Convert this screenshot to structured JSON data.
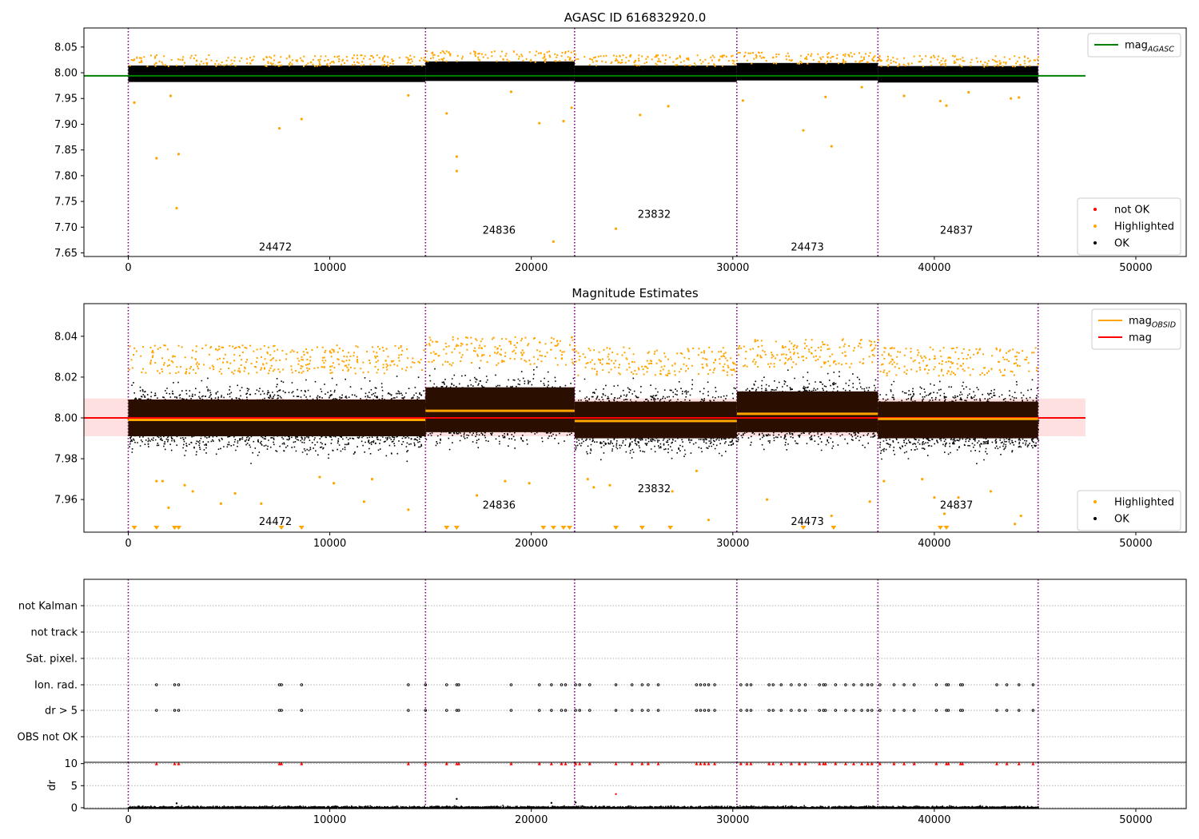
{
  "chart_data": [
    {
      "type": "scatter",
      "title": "AGASC ID 616832920.0",
      "xlim": [
        -2200,
        52500
      ],
      "ylim": [
        7.643,
        8.087
      ],
      "xticks": [
        0,
        10000,
        20000,
        30000,
        40000,
        50000
      ],
      "xtick_labels": [
        "0",
        "10000",
        "20000",
        "30000",
        "40000",
        "50000"
      ],
      "yticks": [
        7.65,
        7.7,
        7.75,
        7.8,
        7.85,
        7.9,
        7.95,
        8.0,
        8.05
      ],
      "ytick_labels": [
        "7.65",
        "7.70",
        "7.75",
        "7.80",
        "7.85",
        "7.90",
        "7.95",
        "8.00",
        "8.05"
      ],
      "obs_boundaries": [
        0,
        14750,
        22150,
        30200,
        37200,
        45150
      ],
      "obsids": [
        {
          "label": "24472",
          "x": 7300,
          "y": 7.655
        },
        {
          "label": "24836",
          "x": 18400,
          "y": 7.687
        },
        {
          "label": "23832",
          "x": 26100,
          "y": 7.718
        },
        {
          "label": "24473",
          "x": 33700,
          "y": 7.655
        },
        {
          "label": "24837",
          "x": 41100,
          "y": 7.687
        }
      ],
      "mag_agasc": {
        "value": 7.994,
        "x_range": [
          -2200,
          47500
        ],
        "color": "#008000"
      },
      "ok_band": [
        {
          "x0": 0,
          "x1": 14750,
          "center": 7.998,
          "half": 0.016
        },
        {
          "x0": 14750,
          "x1": 22150,
          "center": 8.003,
          "half": 0.019
        },
        {
          "x0": 22150,
          "x1": 30200,
          "center": 7.998,
          "half": 0.016
        },
        {
          "x0": 30200,
          "x1": 37200,
          "center": 8.002,
          "half": 0.017
        },
        {
          "x0": 37200,
          "x1": 45150,
          "center": 7.997,
          "half": 0.016
        }
      ],
      "highlighted_points": [
        [
          300,
          7.942
        ],
        [
          1400,
          7.834
        ],
        [
          2100,
          7.955
        ],
        [
          2500,
          7.842
        ],
        [
          2400,
          7.737
        ],
        [
          7500,
          7.892
        ],
        [
          8600,
          7.91
        ],
        [
          13900,
          7.956
        ],
        [
          15800,
          7.921
        ],
        [
          16300,
          7.837
        ],
        [
          16300,
          7.809
        ],
        [
          19000,
          7.963
        ],
        [
          20400,
          7.902
        ],
        [
          21100,
          7.672
        ],
        [
          21600,
          7.906
        ],
        [
          22000,
          7.932
        ],
        [
          24200,
          7.697
        ],
        [
          25400,
          7.918
        ],
        [
          26800,
          7.935
        ],
        [
          30500,
          7.946
        ],
        [
          33500,
          7.888
        ],
        [
          34900,
          7.857
        ],
        [
          34600,
          7.953
        ],
        [
          36400,
          7.972
        ],
        [
          38500,
          7.955
        ],
        [
          40300,
          7.945
        ],
        [
          40600,
          7.936
        ],
        [
          41700,
          7.962
        ],
        [
          43800,
          7.95
        ],
        [
          44200,
          7.952
        ]
      ],
      "legend": [
        {
          "label": "mag",
          "sub": "AGASC",
          "color": "#008000",
          "kind": "line",
          "placement": "top-right"
        },
        {
          "label": "not OK",
          "color": "#ff0000",
          "kind": "dot",
          "placement": "bottom-right"
        },
        {
          "label": "Highlighted",
          "color": "#ffa500",
          "kind": "dot",
          "placement": "bottom-right"
        },
        {
          "label": "OK",
          "color": "#000000",
          "kind": "dot",
          "placement": "bottom-right"
        }
      ]
    },
    {
      "type": "scatter",
      "title": "Magnitude Estimates",
      "xlim": [
        -2200,
        52500
      ],
      "ylim": [
        7.944,
        8.056
      ],
      "xticks": [
        0,
        10000,
        20000,
        30000,
        40000,
        50000
      ],
      "xtick_labels": [
        "0",
        "10000",
        "20000",
        "30000",
        "40000",
        "50000"
      ],
      "yticks": [
        7.96,
        7.98,
        8.0,
        8.02,
        8.04
      ],
      "ytick_labels": [
        "7.96",
        "7.98",
        "8.00",
        "8.02",
        "8.04"
      ],
      "obs_boundaries": [
        0,
        14750,
        22150,
        30200,
        37200,
        45150
      ],
      "obsids": [
        {
          "label": "24472",
          "x": 7300,
          "y": 7.9475
        },
        {
          "label": "24836",
          "x": 18400,
          "y": 7.9555
        },
        {
          "label": "23832",
          "x": 26100,
          "y": 7.9635
        },
        {
          "label": "24473",
          "x": 33700,
          "y": 7.9475
        },
        {
          "label": "24837",
          "x": 41100,
          "y": 7.9555
        }
      ],
      "mag": {
        "value": 8.0,
        "x_range": [
          -2200,
          47500
        ],
        "band": [
          7.991,
          8.0095
        ],
        "color": "#ff0000"
      },
      "mag_obsid": [
        {
          "x0": 0,
          "x1": 14750,
          "value": 7.999
        },
        {
          "x0": 14750,
          "x1": 22150,
          "value": 8.0035
        },
        {
          "x0": 22150,
          "x1": 30200,
          "value": 7.9985
        },
        {
          "x0": 30200,
          "x1": 37200,
          "value": 8.002
        },
        {
          "x0": 37200,
          "x1": 45150,
          "value": 7.9995
        }
      ],
      "ok_band": [
        {
          "x0": 0,
          "x1": 14750,
          "center": 8.0,
          "half": 0.009
        },
        {
          "x0": 14750,
          "x1": 22150,
          "center": 8.004,
          "half": 0.011
        },
        {
          "x0": 22150,
          "x1": 30200,
          "center": 7.999,
          "half": 0.009
        },
        {
          "x0": 30200,
          "x1": 37200,
          "center": 8.003,
          "half": 0.01
        },
        {
          "x0": 37200,
          "x1": 45150,
          "center": 7.999,
          "half": 0.009
        }
      ],
      "highlighted_points": [
        [
          1400,
          7.969
        ],
        [
          1700,
          7.969
        ],
        [
          2000,
          7.956
        ],
        [
          2800,
          7.967
        ],
        [
          3200,
          7.964
        ],
        [
          4600,
          7.958
        ],
        [
          5300,
          7.963
        ],
        [
          6600,
          7.958
        ],
        [
          9500,
          7.971
        ],
        [
          10200,
          7.968
        ],
        [
          11700,
          7.959
        ],
        [
          12100,
          7.97
        ],
        [
          13900,
          7.955
        ],
        [
          17300,
          7.962
        ],
        [
          18700,
          7.969
        ],
        [
          19900,
          7.968
        ],
        [
          22800,
          7.97
        ],
        [
          23100,
          7.966
        ],
        [
          23900,
          7.967
        ],
        [
          27000,
          7.964
        ],
        [
          28200,
          7.974
        ],
        [
          28800,
          7.95
        ],
        [
          31700,
          7.96
        ],
        [
          34900,
          7.952
        ],
        [
          37500,
          7.969
        ],
        [
          36800,
          7.959
        ],
        [
          39400,
          7.97
        ],
        [
          40000,
          7.961
        ],
        [
          40500,
          7.953
        ],
        [
          41200,
          7.961
        ],
        [
          42800,
          7.964
        ],
        [
          44000,
          7.948
        ],
        [
          44300,
          7.952
        ]
      ],
      "offscale_markers": [
        300,
        1400,
        2300,
        2500,
        7600,
        8600,
        15800,
        16300,
        20600,
        21100,
        21600,
        21900,
        24200,
        25500,
        26900,
        33500,
        35000,
        40300,
        40600
      ],
      "legend": [
        {
          "label": "mag",
          "sub": "OBSID",
          "color": "#ffa500",
          "kind": "line",
          "placement": "top-right"
        },
        {
          "label": "mag",
          "sub": "",
          "color": "#ff0000",
          "kind": "line",
          "placement": "top-right"
        },
        {
          "label": "Highlighted",
          "color": "#ffa500",
          "kind": "dot",
          "placement": "bottom-right"
        },
        {
          "label": "OK",
          "color": "#000000",
          "kind": "dot",
          "placement": "bottom-right"
        }
      ]
    },
    {
      "type": "scatter",
      "title": "",
      "xlim": [
        -2200,
        52500
      ],
      "categories": [
        "not Kalman",
        "not track",
        "Sat. pixel.",
        "Ion. rad.",
        "dr > 5",
        "OBS not OK"
      ],
      "obs_boundaries": [
        0,
        14750,
        22150,
        30200,
        37200,
        45150
      ],
      "flag_x": [
        1400,
        2300,
        2500,
        7500,
        7600,
        8600,
        13900,
        14750,
        15800,
        16300,
        16400,
        19000,
        20400,
        21000,
        21500,
        21700,
        22200,
        22400,
        22900,
        24200,
        25000,
        25500,
        25800,
        26300,
        28200,
        28400,
        28600,
        28800,
        29100,
        30400,
        30700,
        30900,
        31800,
        32000,
        32400,
        32900,
        33300,
        33600,
        34300,
        34500,
        34600,
        35100,
        35600,
        36000,
        36400,
        36700,
        36900,
        37300,
        38000,
        38500,
        39000,
        40100,
        40600,
        40700,
        41300,
        41400,
        43100,
        43600,
        44200,
        44900
      ]
    },
    {
      "type": "scatter",
      "title": "",
      "xlim": [
        -2200,
        52500
      ],
      "ylim": [
        -0.2,
        10.3
      ],
      "ylabel": "dr",
      "yticks": [
        0,
        5,
        10
      ],
      "ytick_labels": [
        "0",
        "5",
        "10"
      ],
      "xticks": [
        0,
        10000,
        20000,
        30000,
        40000,
        50000
      ],
      "xtick_labels": [
        "0",
        "10000",
        "20000",
        "30000",
        "40000",
        "50000"
      ],
      "obs_boundaries": [
        0,
        14750,
        22150,
        30200,
        37200,
        45150
      ],
      "outliers": [
        [
          16300,
          2.0
        ],
        [
          24200,
          3.1
        ],
        [
          22200,
          1.2
        ],
        [
          2400,
          1.0
        ],
        [
          21000,
          1.1
        ]
      ],
      "capped_x": [
        1400,
        2300,
        2500,
        7500,
        7600,
        8600,
        13900,
        14750,
        15800,
        16300,
        16400,
        19000,
        20400,
        21000,
        21500,
        21700,
        22200,
        22400,
        22900,
        24200,
        25000,
        25500,
        25800,
        26300,
        28200,
        28400,
        28600,
        28800,
        29100,
        30400,
        30700,
        30900,
        31800,
        32000,
        32400,
        32900,
        33300,
        33600,
        34300,
        34500,
        34600,
        35100,
        35600,
        36000,
        36400,
        36700,
        36900,
        37300,
        38000,
        38500,
        39000,
        40100,
        40600,
        40700,
        41300,
        41400,
        43100,
        43600,
        44200,
        44900
      ]
    }
  ]
}
